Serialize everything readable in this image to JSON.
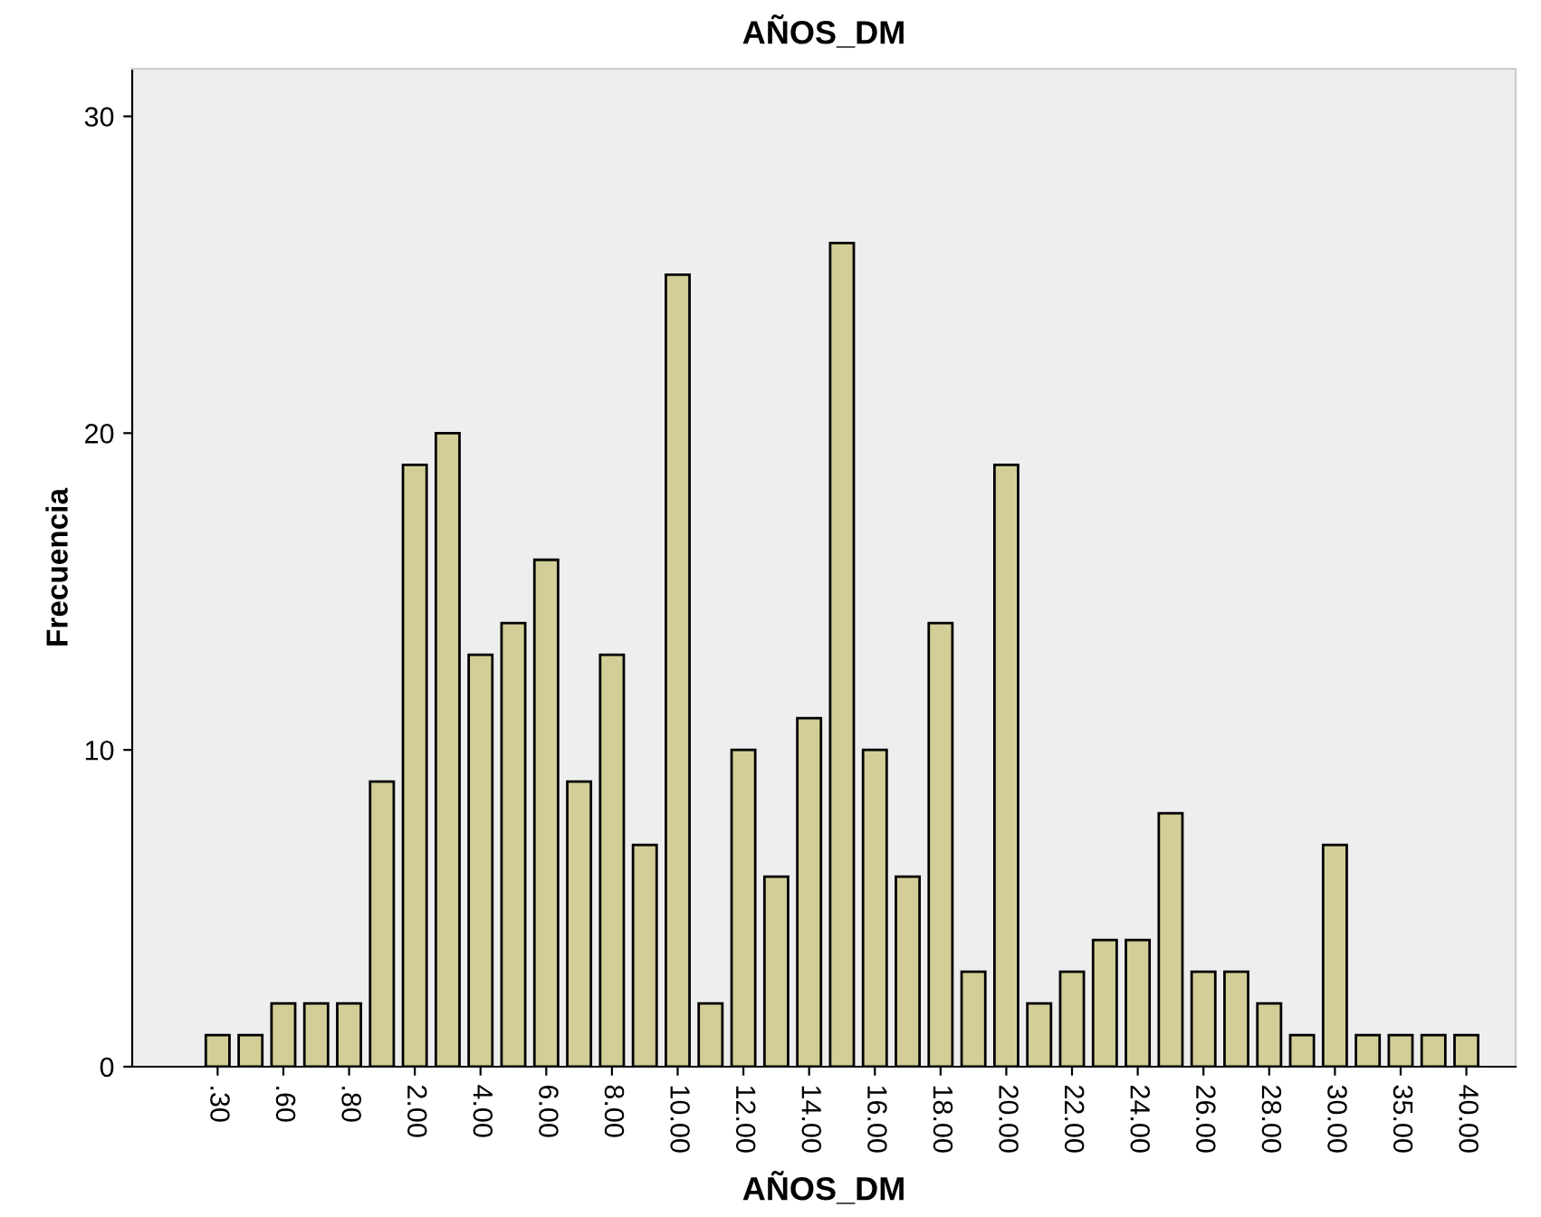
{
  "chart_data": {
    "type": "bar",
    "title": "AÑOS_DM",
    "xlabel": "AÑOS_DM",
    "ylabel": "Frecuencia",
    "categories": [
      ".30",
      null,
      ".60",
      null,
      ".80",
      null,
      "2.00",
      null,
      "4.00",
      null,
      "6.00",
      null,
      "8.00",
      null,
      "10.00",
      null,
      "12.00",
      null,
      "14.00",
      null,
      "16.00",
      null,
      "18.00",
      null,
      "20.00",
      null,
      "22.00",
      null,
      "24.00",
      null,
      "26.00",
      null,
      "28.00",
      null,
      "30.00",
      null,
      "35.00",
      null,
      "40.00"
    ],
    "values": [
      1,
      1,
      2,
      2,
      2,
      9,
      19,
      20,
      13,
      14,
      16,
      9,
      13,
      7,
      25,
      2,
      10,
      6,
      11,
      26,
      10,
      6,
      14,
      3,
      19,
      2,
      3,
      4,
      4,
      8,
      3,
      3,
      2,
      1,
      7,
      1,
      1,
      1,
      1
    ],
    "color": "#d3ce97",
    "ylim": [
      0,
      31.5
    ],
    "yticks": [
      0,
      10,
      20,
      30
    ],
    "grid": false
  }
}
